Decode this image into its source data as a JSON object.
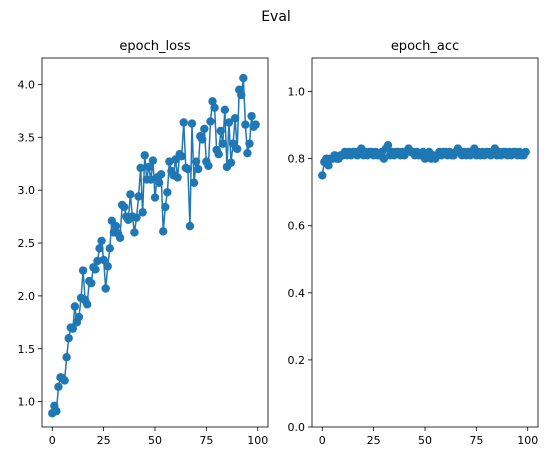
{
  "figure": {
    "suptitle": "Eval"
  },
  "chart_data": [
    {
      "type": "line",
      "title": "epoch_loss",
      "xlabel": "",
      "ylabel": "",
      "xlim": [
        -5,
        105
      ],
      "ylim": [
        0.76,
        4.25
      ],
      "xticks": [
        0,
        25,
        50,
        75,
        100
      ],
      "yticks": [
        1.0,
        1.5,
        2.0,
        2.5,
        3.0,
        3.5,
        4.0
      ],
      "ytick_labels": [
        "1.0",
        "1.5",
        "2.0",
        "2.5",
        "3.0",
        "3.5",
        "4.0"
      ],
      "color": "#1f77b4",
      "markers": true,
      "grid": false,
      "series": [
        {
          "x": [
            0,
            1,
            2,
            3,
            4,
            5,
            6,
            7,
            8,
            9,
            10,
            11,
            12,
            13,
            14,
            15,
            16,
            17,
            18,
            19,
            20,
            21,
            22,
            23,
            24,
            25,
            26,
            27,
            28,
            29,
            30,
            31,
            32,
            33,
            34,
            35,
            36,
            37,
            38,
            39,
            40,
            41,
            42,
            43,
            44,
            45,
            46,
            47,
            48,
            49,
            50,
            51,
            52,
            53,
            54,
            55,
            56,
            57,
            58,
            59,
            60,
            61,
            62,
            63,
            64,
            65,
            66,
            67,
            68,
            69,
            70,
            71,
            72,
            73,
            74,
            75,
            76,
            77,
            78,
            79,
            80,
            81,
            82,
            83,
            84,
            85,
            86,
            87,
            88,
            89,
            90,
            91,
            92,
            93,
            94,
            95,
            96,
            97,
            98,
            99
          ],
          "y": [
            0.89,
            0.96,
            0.91,
            1.14,
            1.23,
            1.22,
            1.2,
            1.42,
            1.6,
            1.7,
            1.69,
            1.9,
            1.75,
            1.8,
            1.98,
            2.24,
            1.96,
            1.92,
            2.14,
            2.12,
            2.27,
            2.25,
            2.33,
            2.45,
            2.52,
            2.34,
            2.07,
            2.28,
            2.45,
            2.71,
            2.6,
            2.66,
            2.59,
            2.55,
            2.86,
            2.84,
            2.75,
            2.72,
            2.96,
            2.75,
            2.6,
            2.74,
            2.94,
            3.21,
            2.79,
            3.33,
            3.1,
            3.22,
            3.1,
            3.28,
            2.93,
            3.12,
            3.07,
            3.15,
            2.61,
            2.84,
            2.98,
            3.27,
            3.18,
            3.14,
            3.29,
            3.12,
            3.34,
            3.32,
            3.64,
            3.21,
            3.2,
            2.66,
            3.63,
            3.07,
            3.27,
            3.2,
            3.51,
            3.48,
            3.58,
            3.27,
            3.23,
            3.65,
            3.84,
            3.78,
            3.38,
            3.34,
            3.56,
            3.44,
            3.76,
            3.22,
            3.64,
            3.26,
            3.44,
            3.68,
            3.39,
            3.95,
            3.9,
            4.06,
            3.62,
            3.35,
            3.44,
            3.7,
            3.6,
            3.62
          ]
        }
      ]
    },
    {
      "type": "line",
      "title": "epoch_acc",
      "xlabel": "",
      "ylabel": "",
      "xlim": [
        -5,
        105
      ],
      "ylim": [
        0.0,
        1.1
      ],
      "xticks": [
        0,
        25,
        50,
        75,
        100
      ],
      "yticks": [
        0.0,
        0.2,
        0.4,
        0.6,
        0.8,
        1.0
      ],
      "ytick_labels": [
        "0.0",
        "0.2",
        "0.4",
        "0.6",
        "0.8",
        "1.0"
      ],
      "color": "#1f77b4",
      "markers": true,
      "grid": false,
      "series": [
        {
          "x": [
            0,
            1,
            2,
            3,
            4,
            5,
            6,
            7,
            8,
            9,
            10,
            11,
            12,
            13,
            14,
            15,
            16,
            17,
            18,
            19,
            20,
            21,
            22,
            23,
            24,
            25,
            26,
            27,
            28,
            29,
            30,
            31,
            32,
            33,
            34,
            35,
            36,
            37,
            38,
            39,
            40,
            41,
            42,
            43,
            44,
            45,
            46,
            47,
            48,
            49,
            50,
            51,
            52,
            53,
            54,
            55,
            56,
            57,
            58,
            59,
            60,
            61,
            62,
            63,
            64,
            65,
            66,
            67,
            68,
            69,
            70,
            71,
            72,
            73,
            74,
            75,
            76,
            77,
            78,
            79,
            80,
            81,
            82,
            83,
            84,
            85,
            86,
            87,
            88,
            89,
            90,
            91,
            92,
            93,
            94,
            95,
            96,
            97,
            98,
            99
          ],
          "y": [
            0.75,
            0.79,
            0.8,
            0.78,
            0.8,
            0.8,
            0.81,
            0.8,
            0.8,
            0.81,
            0.81,
            0.82,
            0.81,
            0.82,
            0.81,
            0.82,
            0.82,
            0.81,
            0.82,
            0.83,
            0.81,
            0.82,
            0.81,
            0.82,
            0.82,
            0.81,
            0.82,
            0.81,
            0.81,
            0.82,
            0.8,
            0.83,
            0.84,
            0.81,
            0.82,
            0.81,
            0.82,
            0.82,
            0.81,
            0.82,
            0.81,
            0.82,
            0.83,
            0.82,
            0.82,
            0.81,
            0.82,
            0.81,
            0.81,
            0.82,
            0.8,
            0.81,
            0.82,
            0.8,
            0.81,
            0.8,
            0.81,
            0.82,
            0.81,
            0.82,
            0.82,
            0.81,
            0.82,
            0.81,
            0.81,
            0.82,
            0.83,
            0.82,
            0.81,
            0.82,
            0.81,
            0.82,
            0.81,
            0.82,
            0.83,
            0.81,
            0.82,
            0.81,
            0.82,
            0.81,
            0.82,
            0.82,
            0.81,
            0.82,
            0.83,
            0.81,
            0.82,
            0.81,
            0.82,
            0.82,
            0.81,
            0.82,
            0.81,
            0.82,
            0.82,
            0.81,
            0.82,
            0.81,
            0.81,
            0.82
          ]
        }
      ]
    }
  ]
}
